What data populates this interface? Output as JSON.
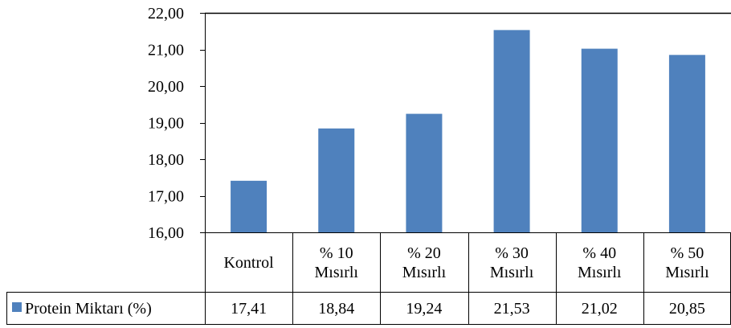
{
  "chart_data": {
    "type": "bar",
    "categories": [
      [
        "Kontrol"
      ],
      [
        "% 10",
        "Mısırlı"
      ],
      [
        "% 20",
        "Mısırlı"
      ],
      [
        "% 30",
        "Mısırlı"
      ],
      [
        "% 40",
        "Mısırlı"
      ],
      [
        "% 50",
        "Mısırlı"
      ]
    ],
    "series": [
      {
        "name": "Protein Miktarı (%)",
        "values": [
          17.41,
          18.84,
          19.24,
          21.53,
          21.02,
          20.85
        ],
        "value_labels": [
          "17,41",
          "18,84",
          "19,24",
          "21,53",
          "21,02",
          "20,85"
        ],
        "color": "#4F81BD"
      }
    ],
    "ylim": [
      16,
      22
    ],
    "yticks": [
      "16,00",
      "17,00",
      "18,00",
      "19,00",
      "20,00",
      "21,00",
      "22,00"
    ],
    "ytick_values": [
      16,
      17,
      18,
      19,
      20,
      21,
      22
    ],
    "grid": false,
    "legend": "data-table-left",
    "title": "",
    "xlabel": "",
    "ylabel": ""
  }
}
